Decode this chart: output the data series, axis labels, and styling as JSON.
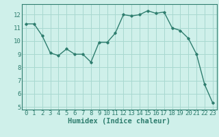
{
  "x": [
    0,
    1,
    2,
    3,
    4,
    5,
    6,
    7,
    8,
    9,
    10,
    11,
    12,
    13,
    14,
    15,
    16,
    17,
    18,
    19,
    20,
    21,
    22,
    23
  ],
  "y": [
    11.3,
    11.3,
    10.4,
    9.1,
    8.9,
    9.4,
    9.0,
    9.0,
    8.4,
    9.9,
    9.9,
    10.6,
    12.0,
    11.9,
    12.0,
    12.3,
    12.1,
    12.2,
    11.0,
    10.8,
    10.2,
    9.0,
    6.7,
    5.3
  ],
  "line_color": "#2e7d6e",
  "marker": "D",
  "marker_size": 1.8,
  "bg_color": "#cff0ea",
  "grid_color": "#a8d8d0",
  "xlabel": "Humidex (Indice chaleur)",
  "ylim": [
    4.8,
    12.8
  ],
  "xlim": [
    -0.5,
    23.5
  ],
  "yticks": [
    5,
    6,
    7,
    8,
    9,
    10,
    11,
    12
  ],
  "xticks": [
    0,
    1,
    2,
    3,
    4,
    5,
    6,
    7,
    8,
    9,
    10,
    11,
    12,
    13,
    14,
    15,
    16,
    17,
    18,
    19,
    20,
    21,
    22,
    23
  ],
  "tick_fontsize": 6.5,
  "xlabel_fontsize": 7.5,
  "line_width": 1.0
}
